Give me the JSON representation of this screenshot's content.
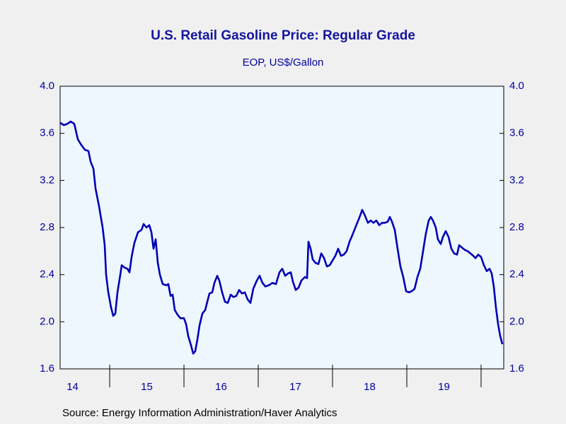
{
  "chart_data": {
    "type": "line",
    "title": "U.S. Retail Gasoline Price: Regular Grade",
    "subtitle": "EOP, US$/Gallon",
    "source": "Source:  Energy Information Administration/Haver Analytics",
    "x": [
      14.333,
      14.381,
      14.429,
      14.476,
      14.524,
      14.571,
      14.619,
      14.667,
      14.714,
      14.743,
      14.781,
      14.81,
      14.857,
      14.905,
      14.933,
      14.952,
      14.981,
      15.019,
      15.048,
      15.076,
      15.105,
      15.143,
      15.162,
      15.2,
      15.238,
      15.267,
      15.295,
      15.333,
      15.381,
      15.429,
      15.457,
      15.495,
      15.533,
      15.562,
      15.59,
      15.619,
      15.648,
      15.676,
      15.714,
      15.762,
      15.79,
      15.819,
      15.848,
      15.876,
      15.914,
      15.952,
      16.0,
      16.029,
      16.057,
      16.095,
      16.124,
      16.152,
      16.181,
      16.21,
      16.248,
      16.286,
      16.314,
      16.343,
      16.381,
      16.41,
      16.448,
      16.476,
      16.514,
      16.552,
      16.59,
      16.629,
      16.667,
      16.705,
      16.743,
      16.781,
      16.819,
      16.857,
      16.895,
      16.933,
      16.981,
      17.019,
      17.057,
      17.095,
      17.143,
      17.19,
      17.238,
      17.286,
      17.324,
      17.362,
      17.4,
      17.438,
      17.467,
      17.505,
      17.543,
      17.581,
      17.629,
      17.657,
      17.676,
      17.705,
      17.733,
      17.771,
      17.81,
      17.848,
      17.886,
      17.924,
      17.962,
      18.0,
      18.038,
      18.076,
      18.114,
      18.152,
      18.19,
      18.229,
      18.257,
      18.295,
      18.333,
      18.371,
      18.4,
      18.438,
      18.476,
      18.514,
      18.552,
      18.59,
      18.629,
      18.667,
      18.705,
      18.743,
      18.771,
      18.8,
      18.838,
      18.876,
      18.914,
      18.952,
      18.99,
      19.029,
      19.067,
      19.105,
      19.143,
      19.181,
      19.219,
      19.257,
      19.295,
      19.324,
      19.352,
      19.39,
      19.419,
      19.457,
      19.486,
      19.524,
      19.562,
      19.6,
      19.638,
      19.676,
      19.705,
      19.743,
      19.781,
      19.819,
      19.857,
      19.895,
      19.924,
      19.962,
      20.0,
      20.038,
      20.076,
      20.114,
      20.143,
      20.171,
      20.2,
      20.229,
      20.257,
      20.286
    ],
    "series": [
      {
        "name": "Regular Grade",
        "color": "#0000b4",
        "values": [
          3.69,
          3.67,
          3.68,
          3.7,
          3.68,
          3.55,
          3.5,
          3.46,
          3.45,
          3.36,
          3.3,
          3.13,
          2.98,
          2.8,
          2.65,
          2.4,
          2.25,
          2.12,
          2.05,
          2.07,
          2.25,
          2.4,
          2.48,
          2.46,
          2.45,
          2.42,
          2.55,
          2.67,
          2.76,
          2.78,
          2.83,
          2.8,
          2.82,
          2.76,
          2.62,
          2.7,
          2.5,
          2.4,
          2.32,
          2.31,
          2.32,
          2.22,
          2.23,
          2.1,
          2.06,
          2.03,
          2.03,
          1.98,
          1.88,
          1.8,
          1.73,
          1.75,
          1.85,
          1.97,
          2.07,
          2.1,
          2.17,
          2.24,
          2.25,
          2.33,
          2.39,
          2.35,
          2.25,
          2.17,
          2.16,
          2.23,
          2.21,
          2.22,
          2.27,
          2.24,
          2.25,
          2.19,
          2.16,
          2.28,
          2.35,
          2.39,
          2.33,
          2.3,
          2.31,
          2.33,
          2.32,
          2.42,
          2.45,
          2.39,
          2.41,
          2.42,
          2.34,
          2.27,
          2.29,
          2.35,
          2.38,
          2.37,
          2.68,
          2.62,
          2.53,
          2.5,
          2.49,
          2.58,
          2.54,
          2.47,
          2.48,
          2.52,
          2.56,
          2.62,
          2.56,
          2.57,
          2.6,
          2.68,
          2.72,
          2.78,
          2.84,
          2.9,
          2.95,
          2.9,
          2.84,
          2.86,
          2.84,
          2.86,
          2.82,
          2.84,
          2.84,
          2.85,
          2.89,
          2.85,
          2.78,
          2.62,
          2.47,
          2.38,
          2.26,
          2.25,
          2.26,
          2.28,
          2.38,
          2.45,
          2.6,
          2.75,
          2.86,
          2.89,
          2.86,
          2.8,
          2.7,
          2.66,
          2.72,
          2.77,
          2.72,
          2.62,
          2.58,
          2.57,
          2.65,
          2.63,
          2.61,
          2.6,
          2.58,
          2.56,
          2.54,
          2.57,
          2.55,
          2.48,
          2.43,
          2.45,
          2.41,
          2.3,
          2.12,
          1.98,
          1.88,
          1.81
        ]
      }
    ],
    "xlim": [
      14.333,
      20.305
    ],
    "xticks": [
      {
        "value": 14.5,
        "label": "14"
      },
      {
        "value": 15.5,
        "label": "15"
      },
      {
        "value": 16.5,
        "label": "16"
      },
      {
        "value": 17.5,
        "label": "17"
      },
      {
        "value": 18.5,
        "label": "18"
      },
      {
        "value": 19.5,
        "label": "19"
      }
    ],
    "ylim": [
      1.6,
      4.0
    ],
    "yticks": [
      {
        "value": 1.6,
        "label": "1.6"
      },
      {
        "value": 2.0,
        "label": "2.0"
      },
      {
        "value": 2.4,
        "label": "2.4"
      },
      {
        "value": 2.8,
        "label": "2.8"
      },
      {
        "value": 3.2,
        "label": "3.2"
      },
      {
        "value": 3.6,
        "label": "3.6"
      },
      {
        "value": 4.0,
        "label": "4.0"
      }
    ],
    "grid": false
  }
}
